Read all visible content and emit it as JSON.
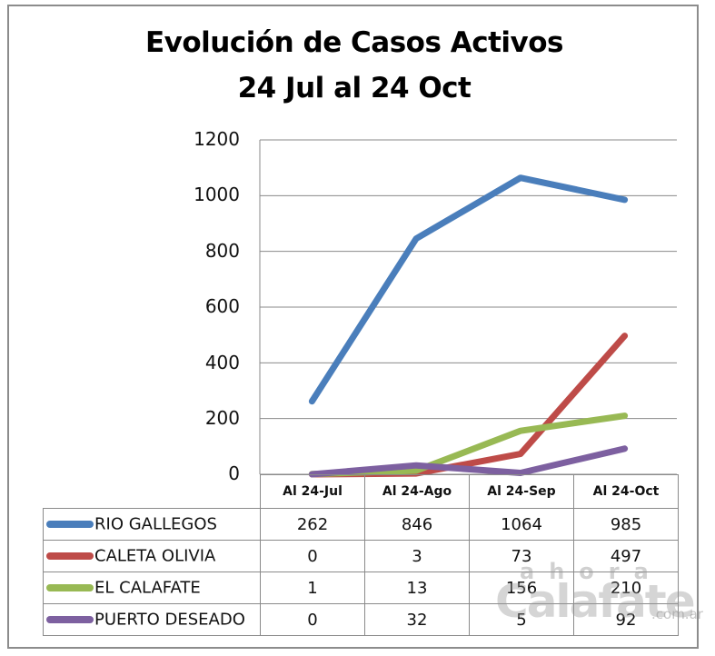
{
  "chart": {
    "title_line1": "Evolución de Casos Activos",
    "title_line2": "24 Jul al 24 Oct",
    "y_ticks": [
      "1200",
      "1000",
      "800",
      "600",
      "400",
      "200",
      "0"
    ],
    "table_headers": [
      "Al 24-Jul",
      "Al 24-Ago",
      "Al 24-Sep",
      "Al 24-Oct"
    ],
    "rows": [
      {
        "name": "RIO GALLEGOS",
        "color": "#4a7ebb",
        "values": [
          "262",
          "846",
          "1064",
          "985"
        ]
      },
      {
        "name": "CALETA OLIVIA",
        "color": "#be4b48",
        "values": [
          "0",
          "3",
          "73",
          "497"
        ]
      },
      {
        "name": "EL CALAFATE",
        "color": "#98b954",
        "values": [
          "1",
          "13",
          "156",
          "210"
        ]
      },
      {
        "name": "PUERTO DESEADO",
        "color": "#7d60a0",
        "values": [
          "0",
          "32",
          "5",
          "92"
        ]
      }
    ]
  },
  "watermark": {
    "top": "ahora",
    "main": "Calafate",
    "suffix": ".com.ar",
    "accent_color": "#f0a060"
  },
  "chart_data": {
    "type": "line",
    "title": "Evolución de Casos Activos 24 Jul al 24 Oct",
    "categories": [
      "Al 24-Jul",
      "Al 24-Ago",
      "Al 24-Sep",
      "Al 24-Oct"
    ],
    "series": [
      {
        "name": "RIO GALLEGOS",
        "color": "#4a7ebb",
        "values": [
          262,
          846,
          1064,
          985
        ]
      },
      {
        "name": "CALETA OLIVIA",
        "color": "#be4b48",
        "values": [
          0,
          3,
          73,
          497
        ]
      },
      {
        "name": "EL CALAFATE",
        "color": "#98b954",
        "values": [
          1,
          13,
          156,
          210
        ]
      },
      {
        "name": "PUERTO DESEADO",
        "color": "#7d60a0",
        "values": [
          0,
          32,
          5,
          92
        ]
      }
    ],
    "xlabel": "",
    "ylabel": "",
    "ylim": [
      0,
      1200
    ],
    "yticks": [
      0,
      200,
      400,
      600,
      800,
      1000,
      1200
    ],
    "grid": true,
    "legend_position": "data-table-bottom"
  }
}
